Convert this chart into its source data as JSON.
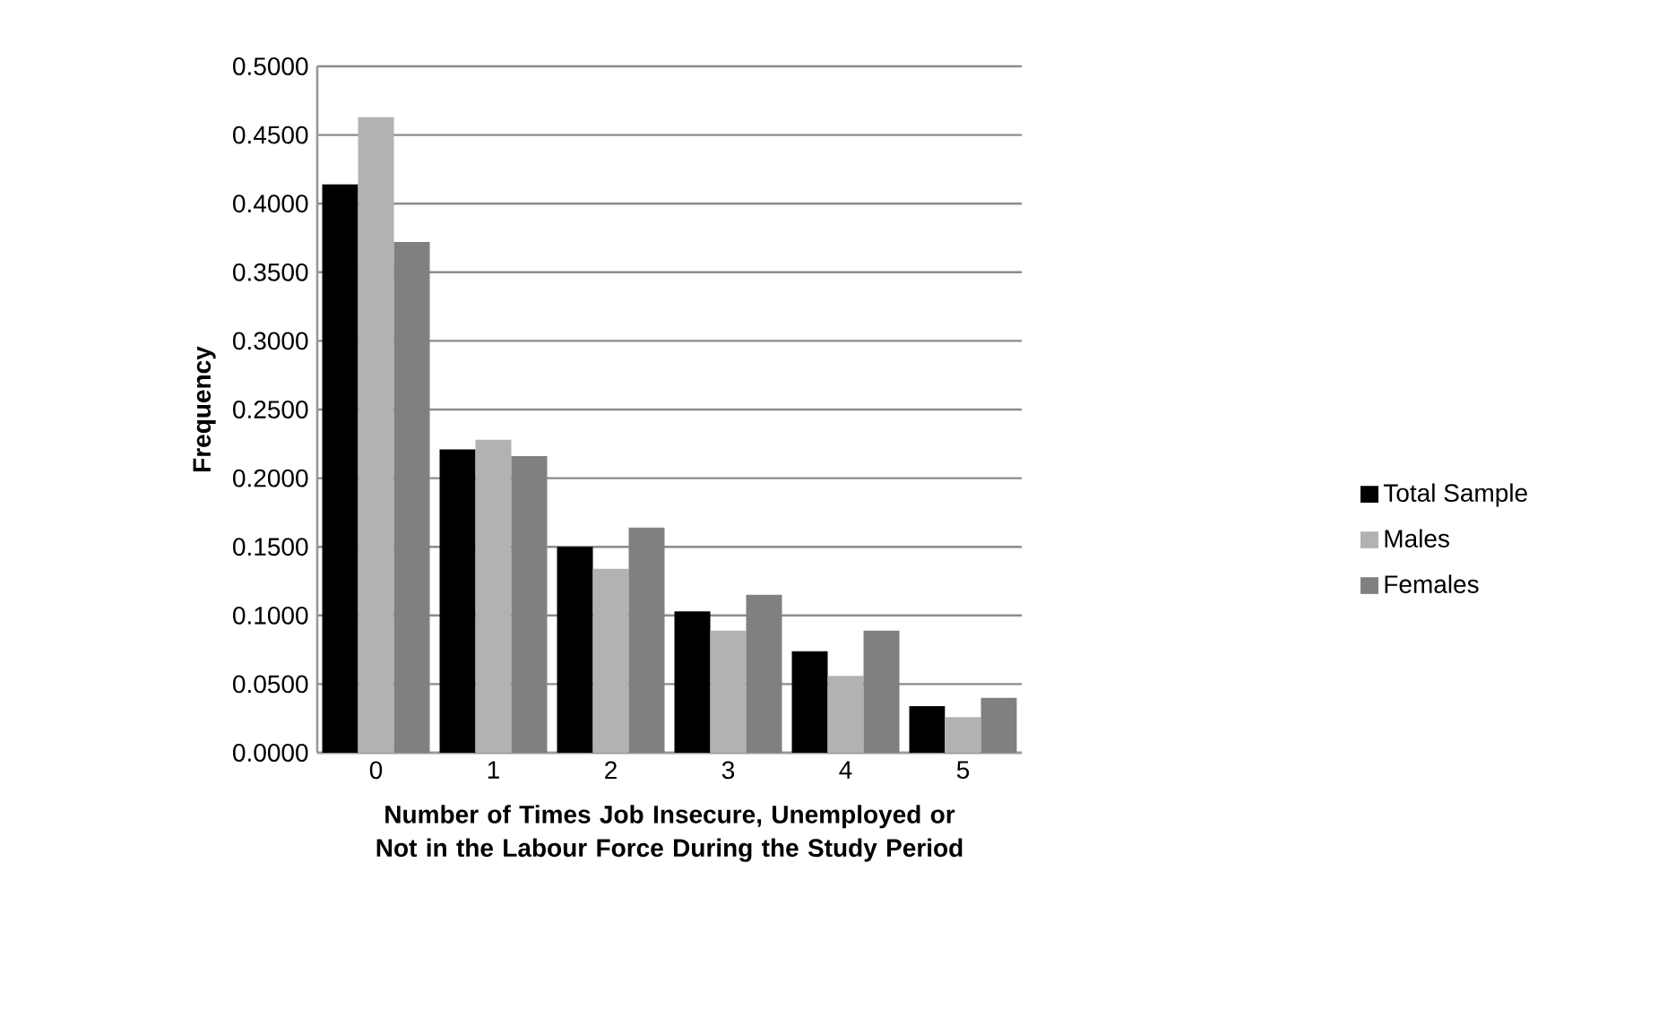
{
  "chart_data": {
    "type": "bar",
    "xlabel": "Number of Times Job Insecure, Unemployed or Not in the Labour Force During the Study Period",
    "ylabel": "Frequency",
    "categories": [
      "0",
      "1",
      "2",
      "3",
      "4",
      "5"
    ],
    "series": [
      {
        "name": "Total Sample",
        "color": "#000000",
        "values": [
          0.414,
          0.221,
          0.15,
          0.103,
          0.074,
          0.034
        ]
      },
      {
        "name": "Males",
        "color": "#b2b2b2",
        "values": [
          0.463,
          0.228,
          0.134,
          0.089,
          0.056,
          0.026
        ]
      },
      {
        "name": "Females",
        "color": "#808080",
        "values": [
          0.372,
          0.216,
          0.164,
          0.115,
          0.089,
          0.04
        ]
      }
    ],
    "ylim": [
      0,
      0.5
    ],
    "yticks": [
      {
        "value": 0,
        "label": "0.0000"
      },
      {
        "value": 0.05,
        "label": "0.0500"
      },
      {
        "value": 0.1,
        "label": "0.1000"
      },
      {
        "value": 0.15,
        "label": "0.1500"
      },
      {
        "value": 0.2,
        "label": "0.2000"
      },
      {
        "value": 0.25,
        "label": "0.2500"
      },
      {
        "value": 0.3,
        "label": "0.3000"
      },
      {
        "value": 0.35,
        "label": "0.3500"
      },
      {
        "value": 0.4,
        "label": "0.4000"
      },
      {
        "value": 0.45,
        "label": "0.4500"
      },
      {
        "value": 0.5,
        "label": "0.5000"
      }
    ],
    "grid": "y",
    "legend": "right"
  }
}
